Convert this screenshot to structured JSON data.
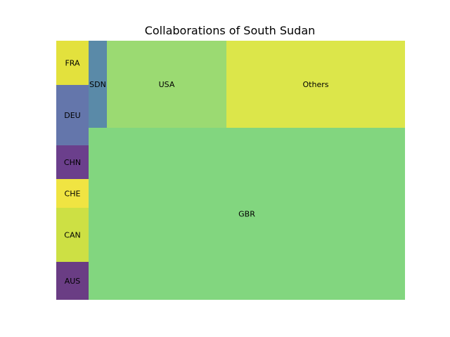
{
  "chart_data": {
    "type": "treemap",
    "title": "Collaborations of South Sudan",
    "cells": [
      {
        "label": "AUS",
        "color": "#6a3d84"
      },
      {
        "label": "CAN",
        "color": "#cde044"
      },
      {
        "label": "CHE",
        "color": "#f0e442"
      },
      {
        "label": "CHN",
        "color": "#6b3f8c"
      },
      {
        "label": "DEU",
        "color": "#6476ab"
      },
      {
        "label": "FRA",
        "color": "#e3e13d"
      },
      {
        "label": "SDN",
        "color": "#5a8aa8"
      },
      {
        "label": "USA",
        "color": "#9bda72"
      },
      {
        "label": "Others",
        "color": "#dce64a"
      },
      {
        "label": "GBR",
        "color": "#82d67f"
      }
    ]
  }
}
